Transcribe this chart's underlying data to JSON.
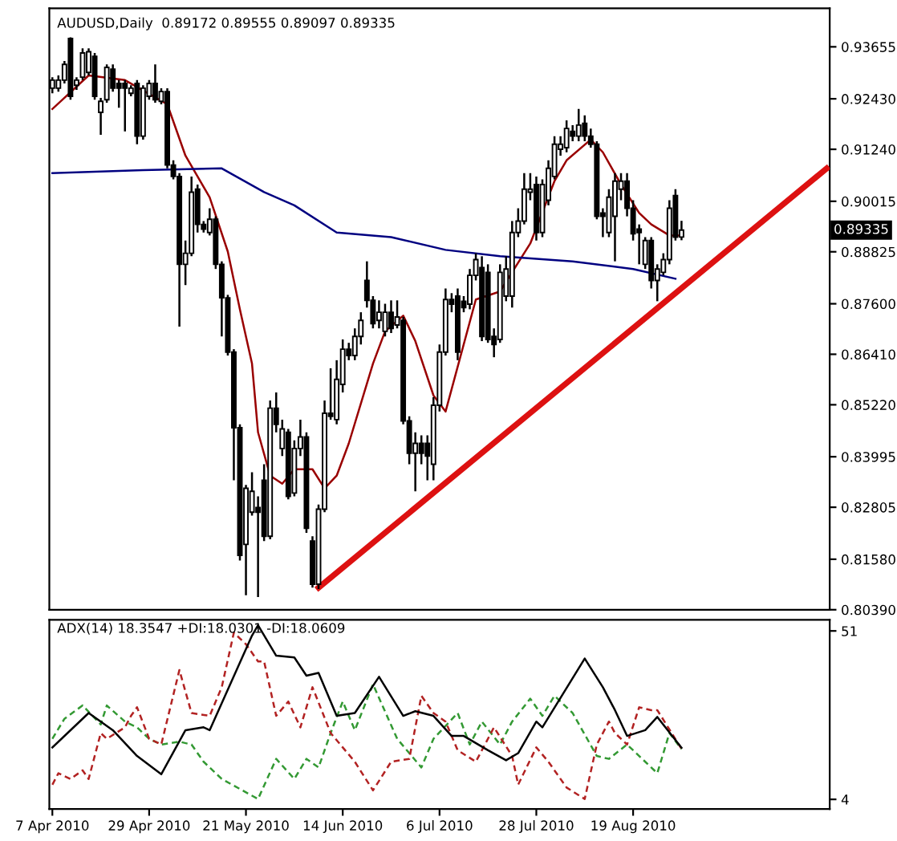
{
  "chart_data": [
    {
      "type": "candlestick",
      "title": "AUDUSD,Daily  0.89172 0.89555 0.89097 0.89335",
      "tick_labels": "y",
      "categories": [
        null,
        null,
        null,
        null,
        null,
        null,
        null,
        null,
        null,
        null,
        null,
        null,
        null,
        null,
        null,
        null,
        null,
        null,
        null,
        null,
        null,
        null,
        null,
        null,
        null,
        null,
        null,
        null,
        null,
        null,
        null,
        null,
        null,
        null,
        null,
        null,
        null,
        null,
        null,
        null,
        null,
        null,
        null,
        null,
        null,
        null,
        null,
        null,
        null,
        null,
        null,
        null,
        null,
        null,
        null,
        null,
        null,
        null,
        null,
        null,
        null,
        null,
        null,
        null,
        null,
        null,
        null,
        null,
        null,
        null,
        null,
        null,
        null,
        null,
        null,
        null,
        null,
        null,
        null,
        null,
        null,
        null,
        null,
        null,
        null,
        null,
        null,
        null,
        null,
        null,
        null,
        null,
        null,
        null,
        null,
        null,
        null,
        null,
        null,
        null,
        null,
        null,
        null,
        null,
        null,
        null,
        null,
        null,
        null,
        null,
        null,
        null,
        null,
        null,
        null,
        null,
        null,
        null,
        null,
        null,
        null,
        null,
        null,
        null,
        null,
        null,
        null,
        null,
        null
      ],
      "ohlc": [
        [
          0.9268,
          0.9294,
          0.9256,
          0.9287
        ],
        [
          0.9268,
          0.9298,
          0.926,
          0.9287
        ],
        [
          0.9287,
          0.9332,
          0.9279,
          0.9324
        ],
        [
          0.9385,
          0.9388,
          0.9241,
          0.9249
        ],
        [
          0.9275,
          0.9294,
          0.9264,
          0.9287
        ],
        [
          0.9294,
          0.9362,
          0.9287,
          0.9351
        ],
        [
          0.9305,
          0.9362,
          0.9298,
          0.9354
        ],
        [
          0.9343,
          0.9351,
          0.9241,
          0.9249
        ],
        [
          0.9211,
          0.9245,
          0.9158,
          0.9237
        ],
        [
          0.9241,
          0.9324,
          0.9234,
          0.9317
        ],
        [
          0.9313,
          0.9324,
          0.926,
          0.9268
        ],
        [
          0.9279,
          0.9287,
          0.9222,
          0.9268
        ],
        [
          0.9279,
          0.9287,
          0.9166,
          0.9268
        ],
        [
          0.9256,
          0.9275,
          0.9249,
          0.9268
        ],
        [
          0.9279,
          0.9287,
          0.9136,
          0.9155
        ],
        [
          0.9155,
          0.9275,
          0.9147,
          0.9268
        ],
        [
          0.9249,
          0.9287,
          0.9241,
          0.9279
        ],
        [
          0.9279,
          0.9324,
          0.9234,
          0.9241
        ],
        [
          0.9237,
          0.9268,
          0.923,
          0.926
        ],
        [
          0.926,
          0.9268,
          0.9079,
          0.9087
        ],
        [
          0.9087,
          0.9098,
          0.9053,
          0.906
        ],
        [
          0.906,
          0.9068,
          0.8706,
          0.8853
        ],
        [
          0.8853,
          0.8909,
          0.8804,
          0.8879
        ],
        [
          0.8879,
          0.906,
          0.8872,
          0.9023
        ],
        [
          0.903,
          0.9041,
          0.8928,
          0.8947
        ],
        [
          0.8947,
          0.8955,
          0.8928,
          0.8936
        ],
        [
          0.8928,
          0.8985,
          0.8921,
          0.8959
        ],
        [
          0.8959,
          0.8966,
          0.8842,
          0.8853
        ],
        [
          0.8853,
          0.886,
          0.8683,
          0.8774
        ],
        [
          0.8774,
          0.8781,
          0.8638,
          0.8646
        ],
        [
          0.8646,
          0.8653,
          0.8344,
          0.8468
        ],
        [
          0.8468,
          0.8476,
          0.8155,
          0.8167
        ],
        [
          0.8193,
          0.8333,
          0.8073,
          0.8325
        ],
        [
          0.8269,
          0.8363,
          0.8261,
          0.8318
        ],
        [
          0.828,
          0.8306,
          0.8069,
          0.8269
        ],
        [
          0.8344,
          0.8382,
          0.8201,
          0.8212
        ],
        [
          0.8212,
          0.8532,
          0.8205,
          0.8514
        ],
        [
          0.8514,
          0.8551,
          0.8457,
          0.8476
        ],
        [
          0.8419,
          0.8487,
          0.8401,
          0.8465
        ],
        [
          0.8457,
          0.8465,
          0.8299,
          0.8306
        ],
        [
          0.8314,
          0.8438,
          0.8306,
          0.8419
        ],
        [
          0.8419,
          0.8487,
          0.8401,
          0.8446
        ],
        [
          0.8446,
          0.8457,
          0.822,
          0.8231
        ],
        [
          0.8201,
          0.8212,
          0.8091,
          0.8099
        ],
        [
          0.8099,
          0.8287,
          0.8088,
          0.8276
        ],
        [
          0.8276,
          0.8532,
          0.8269,
          0.8502
        ],
        [
          0.8502,
          0.8608,
          0.8487,
          0.8495
        ],
        [
          0.8487,
          0.8627,
          0.8476,
          0.8582
        ],
        [
          0.857,
          0.8676,
          0.8551,
          0.8653
        ],
        [
          0.8653,
          0.8668,
          0.8627,
          0.8638
        ],
        [
          0.8638,
          0.8702,
          0.8627,
          0.8683
        ],
        [
          0.8683,
          0.874,
          0.8664,
          0.8721
        ],
        [
          0.8815,
          0.886,
          0.8751,
          0.8768
        ],
        [
          0.8768,
          0.8778,
          0.8702,
          0.8713
        ],
        [
          0.8721,
          0.8768,
          0.8702,
          0.874
        ],
        [
          0.8695,
          0.876,
          0.8683,
          0.874
        ],
        [
          0.874,
          0.8768,
          0.8691,
          0.8702
        ],
        [
          0.871,
          0.8768,
          0.8702,
          0.8729
        ],
        [
          0.8721,
          0.8729,
          0.8476,
          0.8484
        ],
        [
          0.8484,
          0.8495,
          0.8382,
          0.8408
        ],
        [
          0.8408,
          0.8457,
          0.8318,
          0.8431
        ],
        [
          0.8431,
          0.845,
          0.8382,
          0.8408
        ],
        [
          0.8431,
          0.845,
          0.8344,
          0.8401
        ],
        [
          0.8382,
          0.854,
          0.8344,
          0.8521
        ],
        [
          0.8521,
          0.8664,
          0.8506,
          0.8646
        ],
        [
          0.8646,
          0.8796,
          0.8638,
          0.877
        ],
        [
          0.877,
          0.8785,
          0.874,
          0.8759
        ],
        [
          0.8778,
          0.8796,
          0.8627,
          0.8646
        ],
        [
          0.8766,
          0.8778,
          0.874,
          0.8751
        ],
        [
          0.8759,
          0.8842,
          0.8747,
          0.8827
        ],
        [
          0.8827,
          0.8879,
          0.8815,
          0.8864
        ],
        [
          0.8845,
          0.8872,
          0.8672,
          0.8683
        ],
        [
          0.8834,
          0.8853,
          0.8668,
          0.8676
        ],
        [
          0.8683,
          0.8702,
          0.8634,
          0.8664
        ],
        [
          0.8676,
          0.8853,
          0.8668,
          0.8834
        ],
        [
          0.8778,
          0.8872,
          0.8766,
          0.8842
        ],
        [
          0.8778,
          0.8955,
          0.8751,
          0.8928
        ],
        [
          0.8928,
          0.8985,
          0.8917,
          0.8955
        ],
        [
          0.8955,
          0.9068,
          0.8947,
          0.903
        ],
        [
          0.9023,
          0.9068,
          0.9004,
          0.903
        ],
        [
          0.9041,
          0.906,
          0.8909,
          0.8928
        ],
        [
          0.8928,
          0.9053,
          0.8917,
          0.9041
        ],
        [
          0.9004,
          0.9098,
          0.8992,
          0.9079
        ],
        [
          0.906,
          0.9155,
          0.9053,
          0.9136
        ],
        [
          0.9124,
          0.9155,
          0.9109,
          0.9136
        ],
        [
          0.9128,
          0.9192,
          0.9117,
          0.9173
        ],
        [
          0.9166,
          0.9181,
          0.9143,
          0.9155
        ],
        [
          0.9155,
          0.9219,
          0.9143,
          0.9181
        ],
        [
          0.9185,
          0.9204,
          0.9143,
          0.9155
        ],
        [
          0.9155,
          0.9173,
          0.9128,
          0.9136
        ],
        [
          0.9136,
          0.9143,
          0.8959,
          0.8966
        ],
        [
          0.8974,
          0.8985,
          0.8917,
          0.8966
        ],
        [
          0.8928,
          0.903,
          0.8917,
          0.9011
        ],
        [
          0.8966,
          0.9068,
          0.886,
          0.9049
        ],
        [
          0.903,
          0.9068,
          0.9004,
          0.9049
        ],
        [
          0.9049,
          0.9068,
          0.8966,
          0.8985
        ],
        [
          0.8985,
          0.9004,
          0.8909,
          0.8925
        ],
        [
          0.8936,
          0.8947,
          0.8853,
          0.8928
        ],
        [
          0.8853,
          0.8917,
          0.8842,
          0.8909
        ],
        [
          0.8909,
          0.8917,
          0.8796,
          0.8815
        ],
        [
          0.8815,
          0.8853,
          0.8766,
          0.8842
        ],
        [
          0.8834,
          0.8879,
          0.8827,
          0.8864
        ],
        [
          0.8864,
          0.9004,
          0.8853,
          0.8985
        ],
        [
          0.9015,
          0.903,
          0.8909,
          0.8917
        ],
        [
          0.89172,
          0.89555,
          0.89097,
          0.89335
        ],
        null,
        null,
        null,
        null,
        null,
        null,
        null,
        null,
        null,
        null,
        null,
        null,
        null,
        null,
        null,
        null,
        null,
        null,
        null,
        null,
        null,
        null,
        null,
        null
      ],
      "series": [
        {
          "type": "line",
          "color": "#990000",
          "values": [
            0.9219,
            null,
            null,
            null,
            null,
            null,
            0.9298,
            null,
            null,
            null,
            null,
            null,
            0.9287,
            null,
            null,
            null,
            null,
            null,
            null,
            0.923,
            null,
            null,
            0.9109,
            null,
            null,
            null,
            0.9011,
            null,
            null,
            0.8883,
            null,
            0.8747,
            null,
            0.8619,
            0.8457,
            null,
            0.8355,
            null,
            0.8336,
            null,
            0.837,
            null,
            null,
            0.837,
            null,
            0.8325,
            null,
            0.8355,
            null,
            0.8431,
            null,
            null,
            null,
            0.8619,
            null,
            0.8695,
            null,
            null,
            0.8732,
            null,
            0.8672,
            null,
            null,
            0.8544,
            null,
            0.8506,
            null,
            null,
            null,
            null,
            0.877,
            null,
            null,
            null,
            0.8789,
            null,
            null,
            null,
            null,
            0.8902,
            null,
            null,
            null,
            0.9049,
            null,
            0.9098,
            null,
            null,
            null,
            0.9147,
            null,
            0.9117,
            null,
            null,
            0.9041,
            null,
            null,
            0.8974,
            null,
            0.8947,
            null,
            null,
            0.8921,
            null,
            0.8921,
            null,
            null,
            null,
            null,
            null,
            null,
            null,
            null,
            null,
            null,
            null,
            null,
            null,
            null,
            null,
            null,
            null,
            null,
            null,
            null,
            null,
            null,
            null,
            null
          ]
        },
        {
          "type": "line",
          "color": "#000080",
          "values": [
            0.9068,
            null,
            null,
            null,
            null,
            null,
            null,
            null,
            null,
            null,
            null,
            null,
            null,
            null,
            null,
            0.9075,
            null,
            null,
            null,
            null,
            null,
            null,
            null,
            null,
            null,
            null,
            null,
            null,
            0.9079,
            null,
            null,
            null,
            null,
            null,
            null,
            0.9023,
            null,
            null,
            null,
            null,
            0.8992,
            null,
            null,
            null,
            null,
            null,
            null,
            0.8928,
            null,
            null,
            null,
            null,
            null,
            null,
            null,
            null,
            0.8917,
            null,
            null,
            null,
            null,
            null,
            null,
            null,
            null,
            0.8887,
            null,
            null,
            null,
            null,
            null,
            null,
            null,
            null,
            0.8872,
            null,
            null,
            null,
            null,
            null,
            null,
            null,
            null,
            null,
            null,
            null,
            0.886,
            null,
            null,
            null,
            null,
            null,
            null,
            null,
            null,
            null,
            0.8842,
            null,
            null,
            null,
            null,
            null,
            null,
            0.8819,
            null,
            null,
            null,
            null,
            null,
            null,
            null,
            null,
            null,
            null,
            null,
            null,
            null,
            null,
            null,
            null,
            null,
            null,
            null,
            null,
            null,
            null,
            null,
            null,
            null
          ]
        },
        {
          "type": "line",
          "color": "#dd1111",
          "values": [
            null,
            null,
            null,
            null,
            null,
            null,
            null,
            null,
            null,
            null,
            null,
            null,
            null,
            null,
            null,
            null,
            null,
            null,
            null,
            null,
            null,
            null,
            null,
            null,
            null,
            null,
            null,
            null,
            null,
            null,
            null,
            null,
            null,
            null,
            null,
            null,
            null,
            null,
            null,
            null,
            null,
            null,
            null,
            null,
            0.8091,
            null,
            null,
            null,
            null,
            null,
            null,
            null,
            null,
            null,
            null,
            null,
            null,
            null,
            null,
            null,
            null,
            null,
            null,
            null,
            null,
            null,
            null,
            null,
            null,
            null,
            null,
            null,
            null,
            null,
            null,
            null,
            null,
            null,
            null,
            null,
            null,
            null,
            null,
            null,
            null,
            null,
            null,
            null,
            null,
            null,
            null,
            null,
            null,
            null,
            null,
            null,
            null,
            null,
            null,
            null,
            null,
            null,
            null,
            null,
            null,
            null,
            null,
            null,
            null,
            null,
            null,
            null,
            null,
            null,
            null,
            null,
            null,
            null,
            null,
            null,
            null,
            null,
            null,
            null,
            null,
            null,
            null,
            null,
            0.9079
          ]
        }
      ],
      "annotations": [
        "0.89335"
      ],
      "ylim": [
        0.8039,
        0.9456
      ],
      "yticks": [
        {
          "value": 0.93655,
          "label": "0.93655"
        },
        {
          "value": 0.9243,
          "label": "0.92430"
        },
        {
          "value": 0.9124,
          "label": "0.91240"
        },
        {
          "value": 0.90015,
          "label": "0.90015"
        },
        {
          "value": 0.88825,
          "label": "0.88825"
        },
        {
          "value": 0.876,
          "label": "0.87600"
        },
        {
          "value": 0.8641,
          "label": "0.86410"
        },
        {
          "value": 0.8522,
          "label": "0.85220"
        },
        {
          "value": 0.83995,
          "label": "0.83995"
        },
        {
          "value": 0.82805,
          "label": "0.82805"
        },
        {
          "value": 0.8158,
          "label": "0.81580"
        },
        {
          "value": 0.8039,
          "label": "0.80390"
        }
      ]
    },
    {
      "type": "line",
      "title": "ADX(14) 18.3547 +DI:18.0301 -DI:18.0609",
      "categories": [
        "7 Apr 2010",
        null,
        null,
        null,
        null,
        null,
        null,
        null,
        null,
        null,
        null,
        null,
        null,
        null,
        null,
        null,
        "29 Apr 2010",
        null,
        null,
        null,
        null,
        null,
        null,
        null,
        null,
        null,
        null,
        null,
        null,
        null,
        null,
        null,
        "21 May 2010",
        null,
        null,
        null,
        null,
        null,
        null,
        null,
        null,
        null,
        null,
        null,
        null,
        null,
        null,
        null,
        "14 Jun 2010",
        null,
        null,
        null,
        null,
        null,
        null,
        null,
        null,
        null,
        null,
        null,
        null,
        null,
        null,
        null,
        "6 Jul 2010",
        null,
        null,
        null,
        null,
        null,
        null,
        null,
        null,
        null,
        null,
        null,
        null,
        null,
        null,
        null,
        "28 Jul 2010",
        null,
        null,
        null,
        null,
        null,
        null,
        null,
        null,
        null,
        null,
        null,
        null,
        null,
        null,
        null,
        "19 Aug 2010",
        null,
        null,
        null,
        null,
        null,
        null,
        null,
        null,
        null,
        null,
        null,
        null,
        null,
        null,
        null,
        null,
        null,
        null,
        null,
        null,
        null,
        null,
        null,
        null,
        null,
        null,
        null,
        null,
        null,
        null,
        null,
        null
      ],
      "series": [
        {
          "color": "#339933",
          "line_style": "dashed",
          "values": [
            20.9,
            null,
            26.5,
            null,
            null,
            30.2,
            null,
            null,
            24.9,
            30.2,
            null,
            null,
            25.7,
            null,
            24.1,
            null,
            20.9,
            null,
            19.3,
            null,
            null,
            20.1,
            null,
            19.3,
            null,
            14.5,
            null,
            null,
            9.7,
            null,
            null,
            null,
            null,
            null,
            4.1,
            null,
            null,
            15.3,
            null,
            null,
            9.7,
            null,
            15.3,
            null,
            12.9,
            null,
            22.5,
            null,
            31.3,
            null,
            23.3,
            null,
            null,
            36.1,
            null,
            null,
            null,
            20.9,
            null,
            null,
            null,
            12.9,
            null,
            20.9,
            null,
            null,
            null,
            28.1,
            null,
            19.3,
            null,
            25.7,
            null,
            null,
            19.3,
            null,
            25.7,
            null,
            null,
            32.1,
            null,
            27.3,
            null,
            32.9,
            null,
            null,
            28.1,
            null,
            null,
            null,
            16.1,
            null,
            15.3,
            null,
            null,
            19.3,
            null,
            null,
            14.5,
            null,
            11.3,
            null,
            22.5,
            null,
            18.0,
            null,
            null,
            null,
            null,
            null,
            null,
            null,
            null,
            null,
            null,
            null,
            null,
            null,
            null,
            null,
            null,
            null,
            null,
            null,
            null,
            null,
            null,
            null,
            null
          ]
        },
        {
          "color": "#b22222",
          "line_style": "dashed",
          "values": [
            8.1,
            11.3,
            null,
            9.7,
            null,
            12.1,
            9.7,
            null,
            22.5,
            20.9,
            null,
            null,
            24.1,
            27.3,
            29.7,
            null,
            20.9,
            null,
            19.3,
            null,
            null,
            40.1,
            null,
            28.1,
            null,
            null,
            27.3,
            null,
            35.3,
            null,
            50.5,
            null,
            47.3,
            null,
            42.5,
            42.5,
            null,
            27.3,
            null,
            31.3,
            null,
            24.1,
            null,
            35.3,
            null,
            null,
            22.5,
            null,
            null,
            null,
            14.5,
            null,
            null,
            6.5,
            null,
            null,
            14.5,
            null,
            null,
            15.3,
            null,
            32.9,
            null,
            28.1,
            null,
            25.7,
            null,
            17.7,
            null,
            null,
            14.5,
            null,
            null,
            24.1,
            null,
            null,
            16.1,
            8.1,
            null,
            null,
            18.5,
            null,
            14.5,
            null,
            null,
            7.3,
            null,
            null,
            4.1,
            null,
            19.3,
            null,
            25.7,
            22.5,
            null,
            19.3,
            null,
            29.7,
            null,
            28.9,
            28.9,
            null,
            null,
            null,
            18.1,
            null,
            null,
            null,
            null,
            null,
            null,
            null,
            null,
            null,
            null,
            null,
            null,
            null,
            null,
            null,
            null,
            null,
            null,
            null,
            null,
            null,
            null,
            null,
            null
          ]
        },
        {
          "color": "#000000",
          "line_style": "solid",
          "values": [
            18.5,
            null,
            null,
            null,
            null,
            null,
            28.1,
            null,
            null,
            null,
            23.3,
            null,
            null,
            null,
            16.1,
            null,
            null,
            null,
            11.0,
            null,
            null,
            null,
            23.3,
            null,
            null,
            24.1,
            23.3,
            null,
            null,
            null,
            null,
            null,
            null,
            49.7,
            52.6,
            null,
            null,
            44.1,
            null,
            null,
            43.6,
            null,
            38.5,
            null,
            39.3,
            null,
            null,
            27.3,
            null,
            null,
            28.1,
            null,
            null,
            null,
            38.2,
            null,
            null,
            null,
            27.3,
            null,
            28.6,
            null,
            null,
            27.3,
            null,
            null,
            21.7,
            null,
            21.7,
            null,
            null,
            null,
            17.7,
            null,
            null,
            14.9,
            null,
            16.9,
            null,
            null,
            25.7,
            24.1,
            null,
            null,
            null,
            null,
            null,
            null,
            43.3,
            null,
            null,
            35.3,
            null,
            28.9,
            null,
            21.7,
            null,
            null,
            23.3,
            null,
            27.0,
            null,
            null,
            null,
            18.4,
            null,
            null,
            null,
            null,
            null,
            null,
            null,
            null,
            null,
            null,
            null,
            null,
            null,
            null,
            null,
            null,
            null,
            null,
            null,
            null,
            null,
            null,
            null,
            null
          ]
        }
      ],
      "ylim": [
        1.3,
        54.1
      ],
      "yticks": [
        4,
        51
      ]
    }
  ]
}
